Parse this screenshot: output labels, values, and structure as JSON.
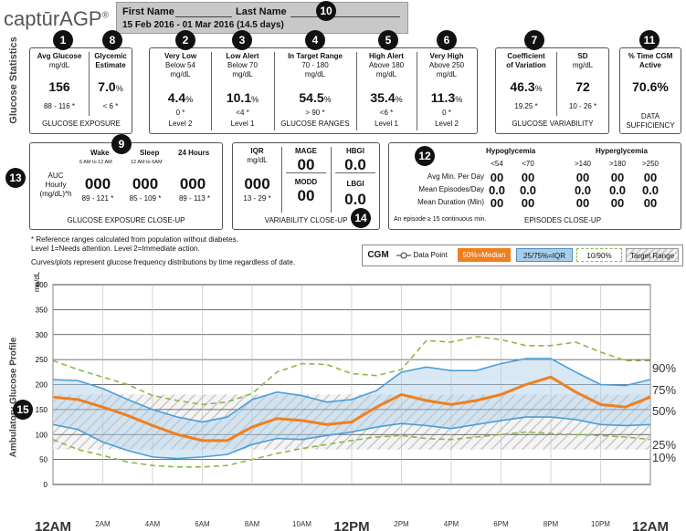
{
  "header": {
    "logo_text": "captūrAGP",
    "logo_reg": "®",
    "first_name_label": "First Name",
    "last_name_label": "Last Name",
    "date_range": "15 Feb 2016 - 01 Mar 2016 (14.5 days)"
  },
  "badges": [
    "1",
    "2",
    "3",
    "4",
    "5",
    "6",
    "7",
    "8",
    "9",
    "10",
    "11",
    "12",
    "13",
    "14",
    "15"
  ],
  "glucose_statistics_label": "Glucose Statistics",
  "exposure": {
    "avg_title": "Avg Glucose",
    "avg_unit": "mg/dL",
    "avg_value": "156",
    "avg_ref": "88 - 116 *",
    "gmi_title": "Glycemic",
    "gmi_title2": "Estimate",
    "gmi_value": "7.0",
    "gmi_unit": "%",
    "gmi_ref": "< 6 *",
    "footer": "GLUCOSE EXPOSURE"
  },
  "ranges": {
    "very_low": {
      "title": "Very Low",
      "sub": "Below 54",
      "unit": "mg/dL",
      "value": "4.4",
      "pct": "%",
      "ref": "0 *",
      "level": "Level 2"
    },
    "low_alert": {
      "title": "Low Alert",
      "sub": "Below 70",
      "unit": "mg/dL",
      "value": "10.1",
      "pct": "%",
      "ref": "<4 *",
      "level": "Level 1"
    },
    "in_target": {
      "title": "In Target Range",
      "sub": "70 - 180",
      "unit": "mg/dL",
      "value": "54.5",
      "pct": "%",
      "ref": "> 90 *",
      "level": "GLUCOSE RANGES"
    },
    "high_alert": {
      "title": "High Alert",
      "sub": "Above 180",
      "unit": "mg/dL",
      "value": "35.4",
      "pct": "%",
      "ref": "<6 *",
      "level": "Level 1"
    },
    "very_high": {
      "title": "Very High",
      "sub": "Above 250",
      "unit": "mg/dL",
      "value": "11.3",
      "pct": "%",
      "ref": "0 *",
      "level": "Level 2"
    }
  },
  "variability": {
    "cv_title": "Coefficient",
    "cv_title2": "of Variation",
    "cv_value": "46.3",
    "cv_unit": "%",
    "cv_ref": "19.25 *",
    "sd_title": "SD",
    "sd_unit": "mg/dL",
    "sd_value": "72",
    "sd_ref": "10 - 26 *",
    "footer": "GLUCOSE VARIABILITY"
  },
  "sufficiency": {
    "title": "% Time CGM",
    "title2": "Active",
    "value": "70.6%",
    "footer1": "DATA",
    "footer2": "SUFFICIENCY"
  },
  "closeup": {
    "wake": "Wake",
    "wake_sub": "6 AM to 12 AM",
    "sleep": "Sleep",
    "sleep_sub": "12 AM to 6AM",
    "h24": "24 Hours",
    "auc_label1": "AUC",
    "auc_label2": "Hourly",
    "auc_label3": "(mg/dL)*h",
    "wake_value": "000",
    "sleep_value": "000",
    "h24_value": "000",
    "wake_ref": "89 - 121 *",
    "sleep_ref": "85 - 109 *",
    "h24_ref": "89 - 113 *",
    "footer": "GLUCOSE EXPOSURE CLOSE-UP"
  },
  "var_closeup": {
    "iqr_title": "IQR",
    "iqr_unit": "mg/dL",
    "iqr_value": "000",
    "iqr_ref": "13 - 29 *",
    "mage_title": "MAGE",
    "mage_value": "00",
    "modd_title": "MODD",
    "modd_value": "00",
    "hbgi_title": "HBGI",
    "hbgi_value": "0.0",
    "lbgi_title": "LBGI",
    "lbgi_value": "0.0",
    "footer": "VARIABILITY CLOSE-UP"
  },
  "episodes": {
    "hypo_title": "Hypoglycemia",
    "hyper_title": "Hyperglycemia",
    "cols": [
      "<54",
      "<70",
      ">140",
      ">180",
      ">250"
    ],
    "rows": [
      {
        "label": "Avg Min. Per Day",
        "values": [
          "00",
          "00",
          "00",
          "00",
          "00"
        ]
      },
      {
        "label": "Mean Episodes/Day",
        "values": [
          "0.0",
          "0.0",
          "0.0",
          "0.0",
          "0.0"
        ]
      },
      {
        "label": "Mean Duration (Min)",
        "values": [
          "00",
          "00",
          "00",
          "00",
          "00"
        ]
      }
    ],
    "note": "An episode ≥ 15 continuous min.",
    "footer": "EPISODES CLOSE-UP"
  },
  "notes": {
    "line1": "* Reference ranges calculated from population without diabetes.",
    "line2": "Level 1=Needs attention. Level 2=Immediate action.",
    "line3": "Curves/plots represent glucose frequency distributions by time regardless of date."
  },
  "legend": {
    "cgm": "CGM",
    "data_point": "Data Point",
    "median": "50%=Median",
    "iqr": "25/75%=IQR",
    "p1090": "10/90%",
    "target": "Target Range",
    "median_color": "#f07f1e",
    "iqr_color": "#a8cde8",
    "p1090_color": "#8cb84a"
  },
  "chart_data": {
    "type": "line",
    "title": "Ambulatory Glucose Profile",
    "ylabel": "mg/dL",
    "ylim": [
      0,
      400
    ],
    "yticks": [
      "0",
      "50",
      "100",
      "150",
      "200",
      "250",
      "300",
      "350",
      "400"
    ],
    "xticks": [
      "12AM",
      "2AM",
      "4AM",
      "6AM",
      "8AM",
      "10AM",
      "12PM",
      "2PM",
      "4PM",
      "6PM",
      "8PM",
      "10PM",
      "12AM"
    ],
    "target_range": [
      70,
      180
    ],
    "x_hours": [
      0,
      1,
      2,
      3,
      4,
      5,
      6,
      7,
      8,
      9,
      10,
      11,
      12,
      13,
      14,
      15,
      16,
      17,
      18,
      19,
      20,
      21,
      22,
      23,
      24
    ],
    "series": [
      {
        "name": "90%",
        "values": [
          248,
          230,
          215,
          200,
          178,
          168,
          160,
          165,
          182,
          225,
          242,
          240,
          222,
          218,
          230,
          288,
          285,
          296,
          290,
          278,
          278,
          285,
          265,
          248,
          248
        ]
      },
      {
        "name": "75%",
        "values": [
          210,
          208,
          192,
          170,
          150,
          135,
          125,
          135,
          170,
          185,
          178,
          165,
          170,
          188,
          225,
          235,
          228,
          228,
          242,
          252,
          252,
          225,
          200,
          198,
          210
        ]
      },
      {
        "name": "50%",
        "values": [
          175,
          170,
          155,
          138,
          118,
          100,
          88,
          88,
          115,
          132,
          128,
          120,
          125,
          155,
          180,
          168,
          160,
          168,
          180,
          200,
          215,
          185,
          160,
          155,
          175
        ]
      },
      {
        "name": "25%",
        "values": [
          120,
          110,
          85,
          68,
          55,
          52,
          55,
          60,
          80,
          92,
          90,
          98,
          105,
          115,
          122,
          118,
          112,
          120,
          128,
          135,
          135,
          130,
          120,
          118,
          120
        ]
      },
      {
        "name": "10%",
        "values": [
          90,
          70,
          58,
          45,
          38,
          35,
          35,
          38,
          50,
          62,
          72,
          80,
          88,
          95,
          98,
          92,
          90,
          95,
          100,
          105,
          102,
          100,
          98,
          95,
          90
        ]
      }
    ],
    "right_labels": [
      "90%",
      "75%",
      "50%",
      "25%",
      "10%"
    ]
  }
}
